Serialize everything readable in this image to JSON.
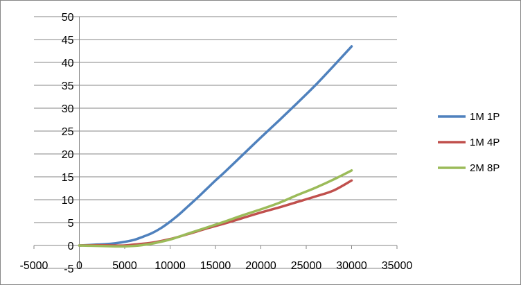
{
  "chart_data": {
    "type": "line",
    "title": "",
    "xlabel": "",
    "ylabel": "",
    "xlim": [
      -5000,
      35000
    ],
    "ylim": [
      -5,
      50
    ],
    "x_ticks": [
      -5000,
      0,
      5000,
      10000,
      15000,
      20000,
      25000,
      30000,
      35000
    ],
    "y_ticks": [
      -5,
      0,
      5,
      10,
      15,
      20,
      25,
      30,
      35,
      40,
      45,
      50
    ],
    "x_tick_labels": [
      "-5000",
      "0",
      "5000",
      "10000",
      "15000",
      "20000",
      "25000",
      "30000",
      "35000"
    ],
    "y_tick_labels": [
      "-5",
      "0",
      "5",
      "10",
      "15",
      "20",
      "25",
      "30",
      "35",
      "40",
      "45",
      "50"
    ],
    "grid": "horizontal",
    "legend_position": "right",
    "series": [
      {
        "name": "1M 1P",
        "color": "#4F81BD",
        "x": [
          0,
          1000,
          2000,
          3000,
          4000,
          5000,
          6000,
          7000,
          8000,
          9000,
          10000,
          11000,
          12000,
          13000,
          14000,
          15000,
          16000,
          18000,
          20000,
          22000,
          24000,
          26000,
          28000,
          30000
        ],
        "y": [
          0,
          0.1,
          0.2,
          0.3,
          0.5,
          0.8,
          1.2,
          1.9,
          2.7,
          3.8,
          5.2,
          6.8,
          8.6,
          10.4,
          12.3,
          14.2,
          16.0,
          19.8,
          23.6,
          27.3,
          31.1,
          35.0,
          39.2,
          43.5
        ]
      },
      {
        "name": "1M 4P",
        "color": "#C0504D",
        "x": [
          0,
          2000,
          4000,
          5000,
          6000,
          8000,
          10000,
          12000,
          14000,
          16000,
          18000,
          20000,
          22000,
          24000,
          26000,
          28000,
          30000
        ],
        "y": [
          0,
          0.05,
          0.0,
          0.0,
          0.2,
          0.6,
          1.4,
          2.5,
          3.7,
          4.8,
          6.0,
          7.2,
          8.3,
          9.5,
          10.7,
          12.0,
          14.2
        ]
      },
      {
        "name": "2M 8P",
        "color": "#9BBB59",
        "x": [
          0,
          2000,
          4000,
          5000,
          6000,
          7000,
          8000,
          10000,
          12000,
          14000,
          16000,
          18000,
          20000,
          22000,
          24000,
          26000,
          28000,
          30000
        ],
        "y": [
          0,
          -0.1,
          -0.2,
          -0.2,
          -0.1,
          0.1,
          0.4,
          1.3,
          2.6,
          3.9,
          5.2,
          6.6,
          7.9,
          9.3,
          11.0,
          12.6,
          14.4,
          16.4
        ]
      }
    ]
  }
}
